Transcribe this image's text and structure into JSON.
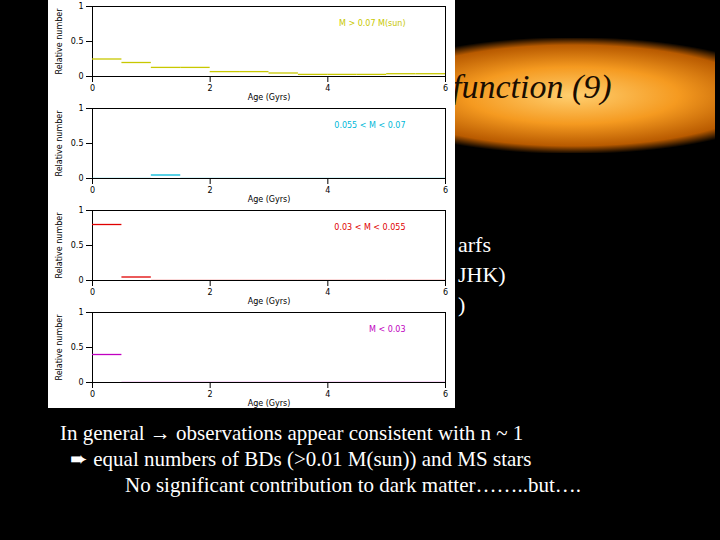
{
  "chart_data": [
    {
      "type": "step",
      "x_label": "Age (Gyrs)",
      "y_label": "Relative number",
      "bins": [
        0,
        0.5,
        1,
        1.5,
        2,
        2.5,
        3,
        3.5,
        4,
        4.5,
        5,
        5.5,
        6
      ],
      "series": [
        {
          "name": "M > 0.07 M(sun)",
          "color": "#c8c800",
          "values": [
            0.25,
            0.2,
            0.13,
            0.13,
            0.07,
            0.07,
            0.05,
            0.03,
            0.03,
            0.03,
            0.04,
            0.04
          ]
        }
      ],
      "xlim": [
        0,
        6
      ],
      "xticks": [
        0,
        2,
        4,
        6
      ],
      "ylim": [
        0,
        1
      ],
      "yticks": [
        0,
        0.5,
        1
      ]
    },
    {
      "type": "step",
      "x_label": "Age (Gyrs)",
      "y_label": "Relative number",
      "bins": [
        0,
        0.5,
        1,
        1.5,
        2,
        2.5,
        3,
        3.5,
        4,
        4.5,
        5,
        5.5,
        6
      ],
      "series": [
        {
          "name": "0.055 < M < 0.07",
          "color": "#00b8d8",
          "values": [
            0,
            0,
            0.05,
            0,
            0,
            0,
            0,
            0,
            0,
            0,
            0,
            0
          ]
        }
      ],
      "xlim": [
        0,
        6
      ],
      "xticks": [
        0,
        2,
        4,
        6
      ],
      "ylim": [
        0,
        1
      ],
      "yticks": [
        0,
        0.5,
        1
      ]
    },
    {
      "type": "step",
      "x_label": "Age (Gyrs)",
      "y_label": "Relative number",
      "bins": [
        0,
        0.5,
        1,
        1.5,
        2,
        2.5,
        3,
        3.5,
        4,
        4.5,
        5,
        5.5,
        6
      ],
      "series": [
        {
          "name": "0.03 < M < 0.055",
          "color": "#e00000",
          "values": [
            0.8,
            0.05,
            0,
            0,
            0,
            0,
            0,
            0,
            0,
            0,
            0,
            0
          ]
        }
      ],
      "xlim": [
        0,
        6
      ],
      "xticks": [
        0,
        2,
        4,
        6
      ],
      "ylim": [
        0,
        1
      ],
      "yticks": [
        0,
        0.5,
        1
      ]
    },
    {
      "type": "step",
      "x_label": "Age (Gyrs)",
      "y_label": "Relative number",
      "bins": [
        0,
        0.5,
        1,
        1.5,
        2,
        2.5,
        3,
        3.5,
        4,
        4.5,
        5,
        5.5,
        6
      ],
      "series": [
        {
          "name": "M < 0.03",
          "color": "#c000c0",
          "values": [
            0.4,
            0,
            0,
            0,
            0,
            0,
            0,
            0,
            0,
            0,
            0,
            0
          ]
        }
      ],
      "xlim": [
        0,
        6
      ],
      "xticks": [
        0,
        2,
        4,
        6
      ],
      "ylim": [
        0,
        1
      ],
      "yticks": [
        0,
        0.5,
        1
      ]
    }
  ],
  "slide": {
    "title": "function (9)",
    "fragments": [
      "arfs",
      "JHK)",
      ")"
    ],
    "bottom_text": [
      "In general → observations appear consistent with  n ~ 1",
      "➨  equal numbers of BDs (>0.01 M(sun)) and MS stars",
      "No significant contribution to dark matter……..but…."
    ]
  }
}
